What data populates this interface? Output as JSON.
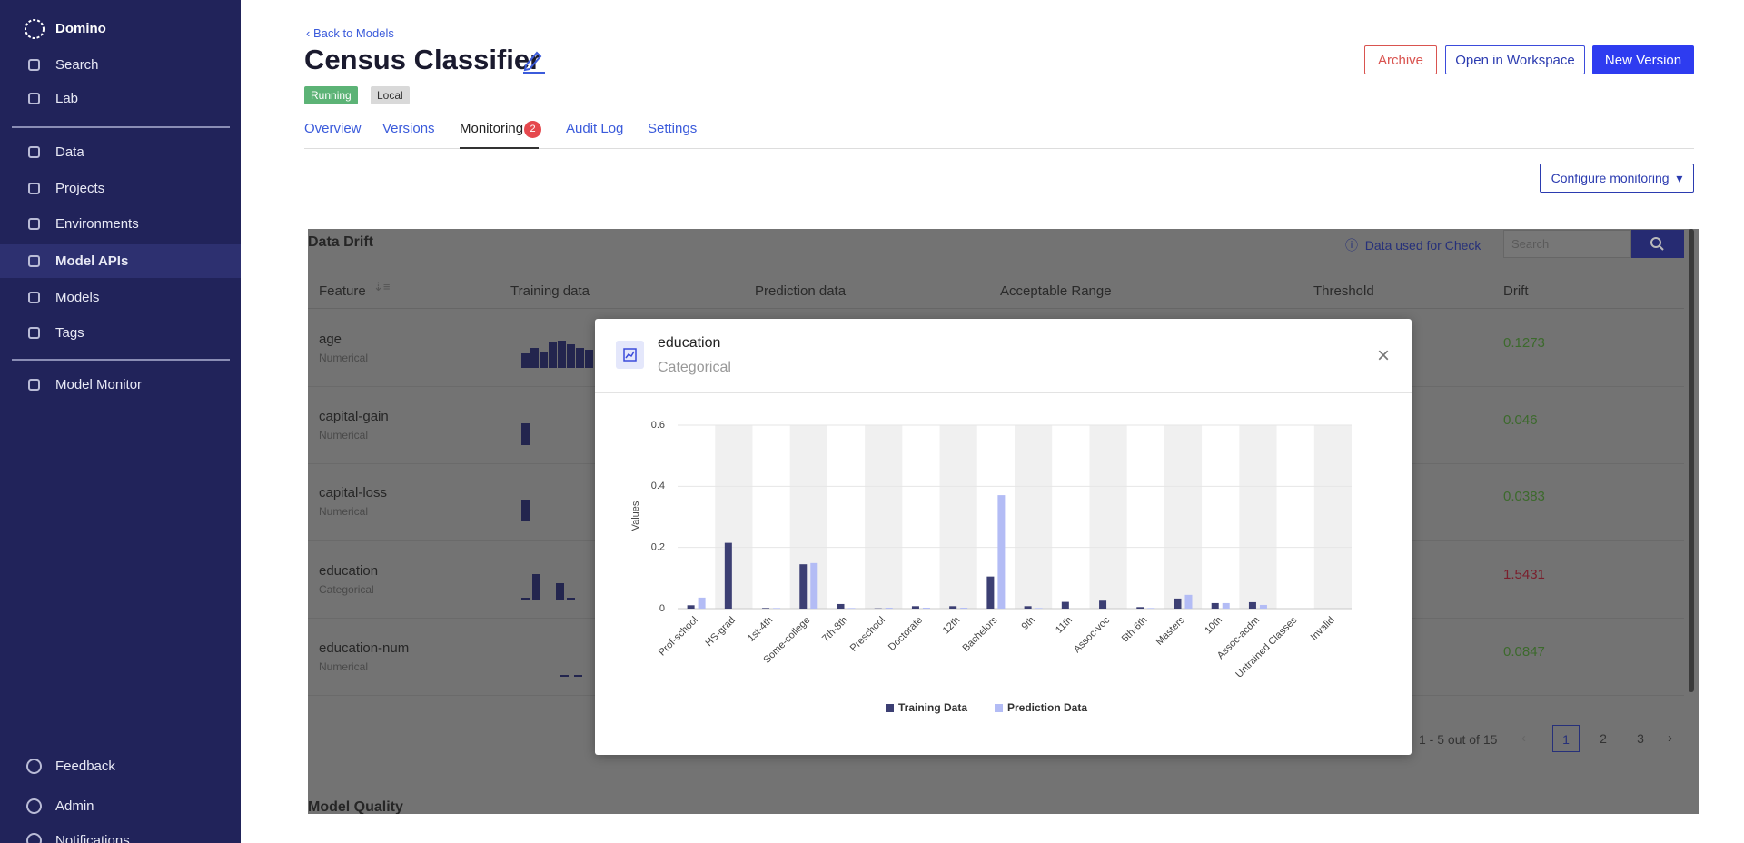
{
  "sidebar": {
    "brand": "Domino",
    "items": [
      "Search",
      "Lab",
      "Data",
      "Projects",
      "Environments",
      "Model APIs",
      "Models",
      "Tags",
      "Model Monitor"
    ],
    "footer": [
      "Feedback",
      "Admin",
      "Notifications"
    ]
  },
  "header": {
    "back": "Back to Models",
    "title": "Census Classifier",
    "badges": [
      "Running",
      "Local"
    ],
    "buttons": [
      "Archive",
      "Open in Workspace",
      "New Version"
    ]
  },
  "tabs": {
    "items": [
      "Overview",
      "Versions",
      "Monitoring",
      "Audit Log",
      "Settings"
    ],
    "monitoring_count": 2
  },
  "configure": "Configure monitoring",
  "drift_table": {
    "title": "Data Drift",
    "info": "Data used for Check",
    "search_placeholder": "Search",
    "columns": [
      "Feature",
      "Training data",
      "Prediction data",
      "Acceptable Range",
      "Threshold",
      "Drift"
    ],
    "rows": [
      [
        "age",
        "Numerical",
        0.1273
      ],
      [
        "capital-gain",
        "Numerical",
        0.046
      ],
      [
        "capital-loss",
        "Numerical",
        0.0383
      ],
      [
        "education",
        "Categorical",
        1.5431
      ],
      [
        "education-num",
        "Numerical",
        0.0847
      ]
    ],
    "pagination": {
      "summary": "1 - 5 out of 15",
      "pages": [
        1,
        2,
        3
      ]
    }
  },
  "model_quality": "Model Quality",
  "modal": {
    "title": "education",
    "subtitle": "Categorical"
  },
  "chart_data": {
    "type": "bar",
    "y_label": "Values",
    "categories": [
      "Prof-school",
      "HS-grad",
      "1st-4th",
      "Some-college",
      "7th-8th",
      "Preschool",
      "Doctorate",
      "12th",
      "Bachelors",
      "9th",
      "11th",
      "Assoc-voc",
      "5th-6th",
      "Masters",
      "10th",
      "Assoc-acdm",
      "Untrained Classes",
      "Invalid"
    ],
    "series": [
      {
        "name": "Training Data",
        "color": "#3c3f73",
        "values": [
          0.011,
          0.215,
          0.002,
          0.145,
          0.015,
          0.001,
          0.008,
          0.008,
          0.105,
          0.008,
          0.022,
          0.026,
          0.005,
          0.033,
          0.018,
          0.021,
          0,
          0
        ]
      },
      {
        "name": "Prediction Data",
        "color": "#b3bcf5",
        "values": [
          0.036,
          0,
          0.002,
          0.149,
          0.002,
          0.003,
          0.003,
          0.003,
          0.371,
          0.002,
          0,
          0,
          0.002,
          0.045,
          0.018,
          0.012,
          0,
          0
        ]
      }
    ],
    "ylim": [
      0,
      0.6
    ],
    "yticks": [
      0,
      0.2,
      0.4,
      0.6
    ],
    "grid": true,
    "legend": "bottom"
  }
}
